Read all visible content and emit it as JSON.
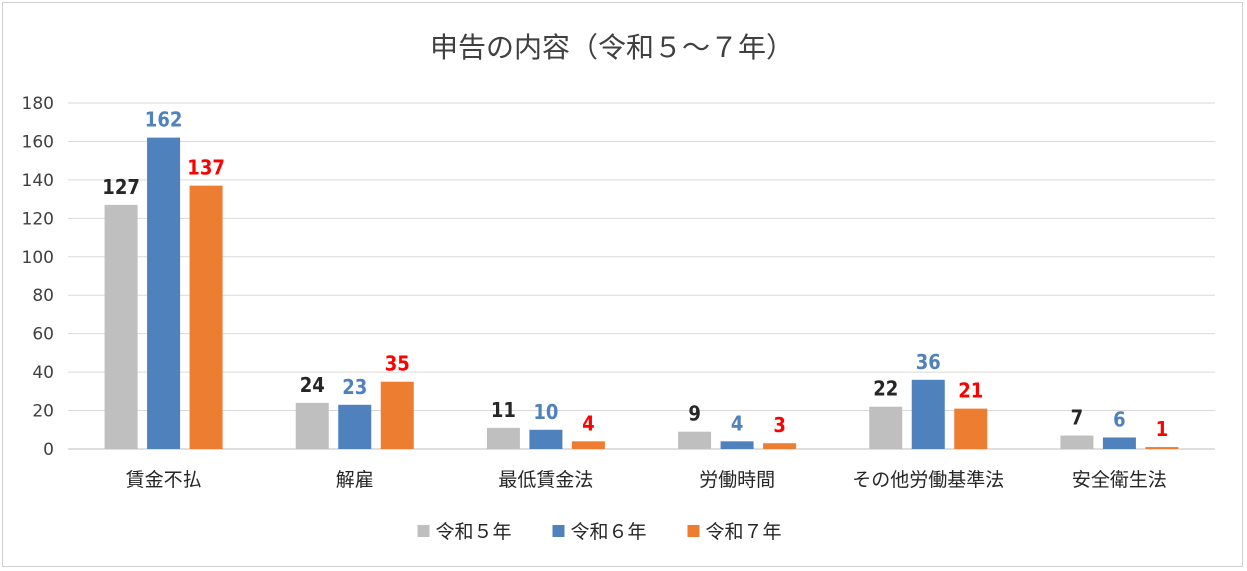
{
  "chart_data": {
    "type": "bar",
    "title": "申告の内容（令和５～７年）",
    "categories": [
      "賃金不払",
      "解雇",
      "最低賃金法",
      "労働時間",
      "その他労働基準法",
      "安全衛生法"
    ],
    "series": [
      {
        "name": "令和５年",
        "color": "#bfbfbf",
        "label_color": "#262626",
        "values": [
          127,
          24,
          11,
          9,
          22,
          7
        ]
      },
      {
        "name": "令和６年",
        "color": "#4f81bd",
        "label_color": "#4f81bd",
        "values": [
          162,
          23,
          10,
          4,
          36,
          6
        ]
      },
      {
        "name": "令和７年",
        "color": "#ed7d31",
        "label_color": "#ff0000",
        "values": [
          137,
          35,
          4,
          3,
          21,
          1
        ]
      }
    ],
    "ylim": [
      0,
      180
    ],
    "yticks": [
      "0",
      "20",
      "40",
      "60",
      "80",
      "100",
      "120",
      "140",
      "160",
      "180"
    ],
    "grid": true,
    "legend_position": "bottom"
  }
}
